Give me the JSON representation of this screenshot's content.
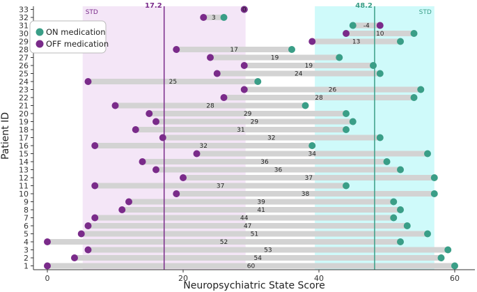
{
  "chart_data": {
    "type": "dumbbell",
    "xlabel": "Neuropsychiatric State Score",
    "ylabel": "Patient ID",
    "xlim": [
      -2,
      63
    ],
    "x_ticks": [
      0,
      20,
      40,
      60
    ],
    "colors": {
      "on": "#3a9e87",
      "off": "#7a2b8a",
      "on_band": "#cffafa",
      "off_band": "#f4e6f7",
      "bar": "#d3d3d3"
    },
    "legend": {
      "position": "top-left",
      "entries": [
        {
          "key": "on",
          "label": "ON medication"
        },
        {
          "key": "off",
          "label": "OFF medication"
        }
      ]
    },
    "std_bands": [
      {
        "key": "off",
        "label": "STD",
        "from": 5.2,
        "to": 29.2,
        "mean": 17.2,
        "mean_label": "17.2"
      },
      {
        "key": "on",
        "label": "STD",
        "from": 39.4,
        "to": 57.0,
        "mean": 48.2,
        "mean_label": "48.2"
      }
    ],
    "patients": [
      {
        "id": "1",
        "off": 0,
        "on": 60,
        "diff": "60"
      },
      {
        "id": "2",
        "off": 4,
        "on": 58,
        "diff": "54"
      },
      {
        "id": "3",
        "off": 6,
        "on": 59,
        "diff": "53"
      },
      {
        "id": "4",
        "off": 0,
        "on": 52,
        "diff": "52"
      },
      {
        "id": "5",
        "off": 5,
        "on": 56,
        "diff": "51"
      },
      {
        "id": "6",
        "off": 6,
        "on": 53,
        "diff": "47"
      },
      {
        "id": "7",
        "off": 7,
        "on": 51,
        "diff": "44"
      },
      {
        "id": "8",
        "off": 11,
        "on": 52,
        "diff": "41"
      },
      {
        "id": "9",
        "off": 12,
        "on": 51,
        "diff": "39"
      },
      {
        "id": "10",
        "off": 19,
        "on": 57,
        "diff": "38"
      },
      {
        "id": "11",
        "off": 7,
        "on": 44,
        "diff": "37"
      },
      {
        "id": "12",
        "off": 20,
        "on": 57,
        "diff": "37"
      },
      {
        "id": "13",
        "off": 16,
        "on": 52,
        "diff": "36"
      },
      {
        "id": "14",
        "off": 14,
        "on": 50,
        "diff": "36"
      },
      {
        "id": "15",
        "off": 22,
        "on": 56,
        "diff": "34"
      },
      {
        "id": "16",
        "off": 7,
        "on": 39,
        "diff": "32"
      },
      {
        "id": "17",
        "off": 17,
        "on": 49,
        "diff": "32"
      },
      {
        "id": "18",
        "off": 13,
        "on": 44,
        "diff": "31"
      },
      {
        "id": "19",
        "off": 16,
        "on": 45,
        "diff": "29"
      },
      {
        "id": "20",
        "off": 15,
        "on": 44,
        "diff": "29"
      },
      {
        "id": "21",
        "off": 10,
        "on": 38,
        "diff": "28"
      },
      {
        "id": "22",
        "off": 26,
        "on": 54,
        "diff": "28"
      },
      {
        "id": "23",
        "off": 29,
        "on": 55,
        "diff": "26"
      },
      {
        "id": "24",
        "off": 6,
        "on": 31,
        "diff": "25"
      },
      {
        "id": "25",
        "off": 25,
        "on": 49,
        "diff": "24"
      },
      {
        "id": "26",
        "off": 29,
        "on": 48,
        "diff": "19"
      },
      {
        "id": "27",
        "off": 24,
        "on": 43,
        "diff": "19"
      },
      {
        "id": "28",
        "off": 19,
        "on": 36,
        "diff": "17"
      },
      {
        "id": "29",
        "off": 39,
        "on": 52,
        "diff": "13"
      },
      {
        "id": "30",
        "off": 44,
        "on": 54,
        "diff": "10"
      },
      {
        "id": "31",
        "off": 49,
        "on": 45,
        "diff": "-4"
      },
      {
        "id": "32",
        "off": 23,
        "on": 26,
        "diff": "3"
      },
      {
        "id": "33",
        "off": 29,
        "on": 29,
        "diff": "0"
      }
    ]
  }
}
